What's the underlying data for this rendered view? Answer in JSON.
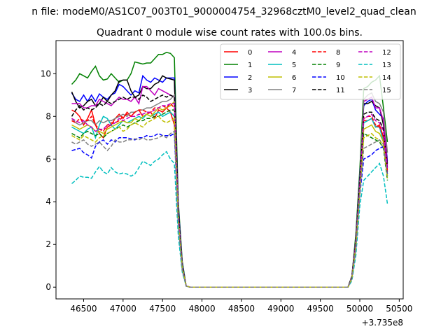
{
  "chart_data": {
    "type": "line",
    "suptitle": "n file: modeM0/AS1C07_003T01_9000004754_32968cztM0_level2_quad_clean",
    "title": "Quadrant 0 module wise count rates with 100.0s bins.",
    "xlabel": "",
    "ylabel": "",
    "x_offset_label": "+3.735e8",
    "xlim": [
      46150,
      50550
    ],
    "ylim": [
      -0.55,
      11.55
    ],
    "xticks": [
      46500,
      47000,
      47500,
      48000,
      48500,
      49000,
      49500,
      50000,
      50500
    ],
    "xtick_labels": [
      "46500",
      "47000",
      "47500",
      "48000",
      "48500",
      "49000",
      "49500",
      "50000",
      "50500"
    ],
    "yticks": [
      0,
      2,
      4,
      6,
      8,
      10
    ],
    "ytick_labels": [
      "0",
      "2",
      "4",
      "6",
      "8",
      "10"
    ],
    "grid": false,
    "legend_placement": "top-right",
    "legend_columns": 4,
    "x_before": [
      46350,
      46400,
      46450,
      46500,
      46550,
      46600,
      46650,
      46700,
      46750,
      46800,
      46850,
      46900,
      46950,
      47000,
      47050,
      47100,
      47150,
      47200,
      47250,
      47300,
      47350,
      47400,
      47450,
      47500,
      47550,
      47600,
      47650,
      47700,
      47750,
      47800,
      47850
    ],
    "gap_x": [
      48000,
      48500,
      49000,
      49500,
      49850
    ],
    "x_after": [
      49900,
      49950,
      50000,
      50050,
      50100,
      50150,
      50200,
      50250,
      50300,
      50350
    ],
    "series": [
      {
        "name": "0",
        "color": "#ff0000",
        "dash": "solid",
        "before": [
          8.3,
          8.2,
          8.0,
          7.6,
          7.9,
          8.3,
          7.6,
          7.2,
          7.0,
          7.5,
          7.6,
          7.9,
          8.1,
          7.9,
          8.2,
          8.0,
          8.2,
          8.3,
          8.0,
          8.1,
          8.2,
          7.9,
          8.3,
          8.2,
          8.4,
          8.2,
          7.6,
          3.2,
          1.0,
          0.05,
          0
        ],
        "after": [
          0.4,
          2.0,
          5.0,
          7.8,
          7.8,
          7.9,
          7.5,
          7.6,
          7.0,
          5.5
        ]
      },
      {
        "name": "1",
        "color": "#008000",
        "dash": "solid",
        "before": [
          9.5,
          9.7,
          10.0,
          9.9,
          9.8,
          10.1,
          10.35,
          9.9,
          9.7,
          9.75,
          10.0,
          9.8,
          9.6,
          9.7,
          9.7,
          10.0,
          10.55,
          10.5,
          10.45,
          10.5,
          10.5,
          10.7,
          10.9,
          10.9,
          11.0,
          10.95,
          10.75,
          4.0,
          1.2,
          0.05,
          0
        ],
        "after": [
          0.5,
          2.5,
          5.5,
          9.3,
          9.4,
          9.6,
          9.7,
          9.9,
          8.4,
          6.8
        ]
      },
      {
        "name": "2",
        "color": "#0000ff",
        "dash": "solid",
        "before": [
          9.1,
          8.8,
          8.7,
          9.0,
          8.7,
          9.0,
          8.7,
          9.05,
          8.9,
          8.8,
          9.0,
          9.1,
          9.5,
          9.4,
          9.2,
          9.0,
          9.2,
          9.1,
          9.9,
          9.7,
          9.6,
          9.8,
          9.7,
          9.6,
          9.8,
          9.8,
          9.8,
          3.8,
          1.1,
          0.05,
          0
        ],
        "after": [
          0.5,
          2.3,
          5.2,
          8.5,
          8.7,
          8.8,
          8.3,
          8.1,
          7.9,
          5.9
        ]
      },
      {
        "name": "3",
        "color": "#000000",
        "dash": "solid",
        "before": [
          9.15,
          8.7,
          8.4,
          8.5,
          8.7,
          8.8,
          8.5,
          8.6,
          8.9,
          8.7,
          9.0,
          9.2,
          9.65,
          9.7,
          9.7,
          9.2,
          8.9,
          9.0,
          9.4,
          9.3,
          9.3,
          9.5,
          9.6,
          9.9,
          9.8,
          9.75,
          9.7,
          3.7,
          1.0,
          0.05,
          0
        ],
        "after": [
          0.5,
          2.3,
          5.1,
          8.6,
          8.6,
          8.7,
          8.5,
          8.4,
          7.6,
          5.8
        ]
      },
      {
        "name": "4",
        "color": "#bf00bf",
        "dash": "solid",
        "before": [
          8.6,
          8.6,
          8.6,
          8.4,
          8.4,
          8.5,
          8.5,
          8.8,
          8.7,
          8.6,
          8.5,
          8.7,
          8.9,
          8.8,
          8.8,
          8.7,
          8.9,
          8.6,
          9.4,
          9.4,
          9.2,
          9.0,
          9.3,
          9.2,
          9.1,
          9.0,
          8.9,
          3.5,
          1.0,
          0.05,
          0
        ],
        "after": [
          0.5,
          2.2,
          5.0,
          8.7,
          8.8,
          8.9,
          8.4,
          8.4,
          7.8,
          5.7
        ]
      },
      {
        "name": "5",
        "color": "#00bfbf",
        "dash": "solid",
        "before": [
          7.5,
          7.4,
          7.3,
          7.2,
          7.4,
          7.5,
          7.0,
          7.6,
          8.0,
          7.9,
          7.6,
          7.4,
          7.6,
          7.8,
          7.7,
          7.8,
          7.9,
          8.0,
          7.9,
          8.1,
          8.0,
          8.1,
          8.2,
          8.0,
          8.1,
          8.2,
          8.0,
          3.2,
          0.9,
          0.05,
          0
        ],
        "after": [
          0.4,
          2.0,
          4.7,
          7.7,
          7.8,
          7.9,
          7.5,
          7.5,
          6.8,
          5.3
        ]
      },
      {
        "name": "6",
        "color": "#bfbf00",
        "dash": "solid",
        "before": [
          7.6,
          7.5,
          7.4,
          7.5,
          7.6,
          7.5,
          7.3,
          7.3,
          7.2,
          7.4,
          7.5,
          7.6,
          7.7,
          7.8,
          7.7,
          7.7,
          7.9,
          7.8,
          8.0,
          8.1,
          8.0,
          8.2,
          8.4,
          8.3,
          8.4,
          8.5,
          8.7,
          3.4,
          1.0,
          0.05,
          0
        ],
        "after": [
          0.4,
          2.0,
          4.6,
          7.4,
          7.5,
          7.6,
          7.3,
          7.2,
          6.8,
          5.2
        ]
      },
      {
        "name": "7",
        "color": "#808080",
        "dash": "solid",
        "before": [
          7.9,
          7.7,
          7.6,
          7.7,
          7.8,
          7.8,
          7.6,
          7.8,
          7.7,
          7.8,
          7.8,
          7.9,
          8.0,
          8.1,
          8.0,
          8.2,
          8.2,
          8.3,
          8.3,
          8.4,
          8.4,
          8.5,
          8.6,
          8.7,
          8.7,
          8.8,
          9.0,
          3.5,
          1.0,
          0.05,
          0
        ],
        "after": [
          0.5,
          2.2,
          5.0,
          8.8,
          9.0,
          9.1,
          8.7,
          8.6,
          8.2,
          6.3
        ]
      },
      {
        "name": "8",
        "color": "#ff0000",
        "dash": "dashed",
        "before": [
          7.8,
          7.7,
          7.9,
          7.8,
          7.8,
          8.0,
          7.6,
          7.4,
          7.3,
          7.6,
          7.7,
          7.7,
          7.8,
          8.0,
          8.1,
          8.0,
          8.2,
          8.3,
          8.3,
          8.2,
          8.2,
          8.4,
          8.4,
          8.5,
          8.4,
          8.6,
          8.4,
          3.3,
          0.9,
          0.05,
          0
        ],
        "after": [
          0.4,
          2.0,
          4.8,
          7.9,
          8.0,
          8.0,
          7.6,
          7.5,
          7.1,
          5.4
        ]
      },
      {
        "name": "9",
        "color": "#008000",
        "dash": "dashed",
        "before": [
          7.2,
          7.1,
          7.0,
          7.2,
          7.3,
          7.2,
          7.1,
          7.2,
          7.0,
          7.2,
          7.3,
          7.4,
          7.5,
          7.6,
          7.5,
          7.6,
          7.7,
          7.8,
          7.8,
          7.9,
          7.9,
          8.0,
          8.0,
          8.1,
          8.2,
          8.3,
          8.3,
          3.2,
          0.9,
          0.05,
          0
        ],
        "after": [
          0.4,
          1.9,
          4.5,
          7.2,
          7.1,
          7.0,
          6.9,
          6.8,
          6.5,
          5.0
        ]
      },
      {
        "name": "10",
        "color": "#0000ff",
        "dash": "dashed",
        "before": [
          6.4,
          6.45,
          6.5,
          6.3,
          6.2,
          6.05,
          6.6,
          6.8,
          6.9,
          6.7,
          6.9,
          6.8,
          7.0,
          7.0,
          7.0,
          6.95,
          6.9,
          7.0,
          7.0,
          7.1,
          7.05,
          7.1,
          7.2,
          7.1,
          7.1,
          7.1,
          7.2,
          2.9,
          0.8,
          0.05,
          0
        ],
        "after": [
          0.4,
          1.8,
          4.3,
          6.0,
          6.1,
          6.2,
          6.4,
          6.5,
          6.6,
          5.3
        ]
      },
      {
        "name": "11",
        "color": "#000000",
        "dash": "dashed",
        "before": [
          8.0,
          8.3,
          8.5,
          8.3,
          8.4,
          8.3,
          8.4,
          8.6,
          8.5,
          8.7,
          8.6,
          8.7,
          8.8,
          8.9,
          8.8,
          8.9,
          8.9,
          8.8,
          9.0,
          8.9,
          8.7,
          8.8,
          8.9,
          9.0,
          8.9,
          9.0,
          8.9,
          3.5,
          1.0,
          0.05,
          0
        ],
        "after": [
          0.5,
          2.1,
          4.9,
          8.1,
          8.2,
          8.2,
          7.9,
          7.8,
          7.4,
          5.6
        ]
      },
      {
        "name": "12",
        "color": "#bf00bf",
        "dash": "dashed",
        "before": [
          7.9,
          7.8,
          7.7,
          7.8,
          7.6,
          7.5,
          7.3,
          7.4,
          7.4,
          7.6,
          7.6,
          7.7,
          7.9,
          7.8,
          7.9,
          8.0,
          8.0,
          8.1,
          8.1,
          8.2,
          8.2,
          8.3,
          8.4,
          8.5,
          8.5,
          8.6,
          8.6,
          3.3,
          0.9,
          0.05,
          0
        ],
        "after": [
          0.4,
          2.0,
          4.7,
          7.9,
          8.0,
          8.1,
          7.8,
          7.7,
          7.3,
          5.5
        ]
      },
      {
        "name": "13",
        "color": "#00bfbf",
        "dash": "dashed",
        "before": [
          4.85,
          5.0,
          5.2,
          5.15,
          5.15,
          5.1,
          5.4,
          5.65,
          5.4,
          5.3,
          5.6,
          5.4,
          5.3,
          5.35,
          5.3,
          5.2,
          5.3,
          5.6,
          5.9,
          5.8,
          5.7,
          5.9,
          6.0,
          6.2,
          6.35,
          6.0,
          5.8,
          2.4,
          0.7,
          0.05,
          0
        ],
        "after": [
          0.3,
          1.5,
          3.8,
          5.0,
          5.2,
          5.4,
          5.6,
          5.8,
          5.2,
          3.9
        ]
      },
      {
        "name": "14",
        "color": "#bfbf00",
        "dash": "dashed",
        "before": [
          7.1,
          7.0,
          6.9,
          7.1,
          7.0,
          6.9,
          6.8,
          7.0,
          7.1,
          7.2,
          7.3,
          7.4,
          7.5,
          7.3,
          7.4,
          7.6,
          7.7,
          7.6,
          7.5,
          7.7,
          7.8,
          7.9,
          8.0,
          7.8,
          7.7,
          7.8,
          7.9,
          3.1,
          0.9,
          0.05,
          0
        ],
        "after": [
          0.4,
          1.9,
          4.4,
          7.0,
          7.1,
          7.2,
          7.0,
          6.9,
          6.6,
          5.1
        ]
      },
      {
        "name": "15",
        "color": "#808080",
        "dash": "dashed",
        "before": [
          6.8,
          6.7,
          6.8,
          6.9,
          6.7,
          6.6,
          6.7,
          6.8,
          6.6,
          6.4,
          6.6,
          6.9,
          6.8,
          6.8,
          6.9,
          6.9,
          6.95,
          6.9,
          7.0,
          6.9,
          6.9,
          6.95,
          7.0,
          7.1,
          7.0,
          7.2,
          7.3,
          3.0,
          0.8,
          0.05,
          0
        ],
        "after": [
          0.4,
          1.8,
          4.4,
          6.5,
          6.6,
          6.7,
          6.8,
          6.9,
          6.7,
          5.2
        ]
      }
    ]
  }
}
